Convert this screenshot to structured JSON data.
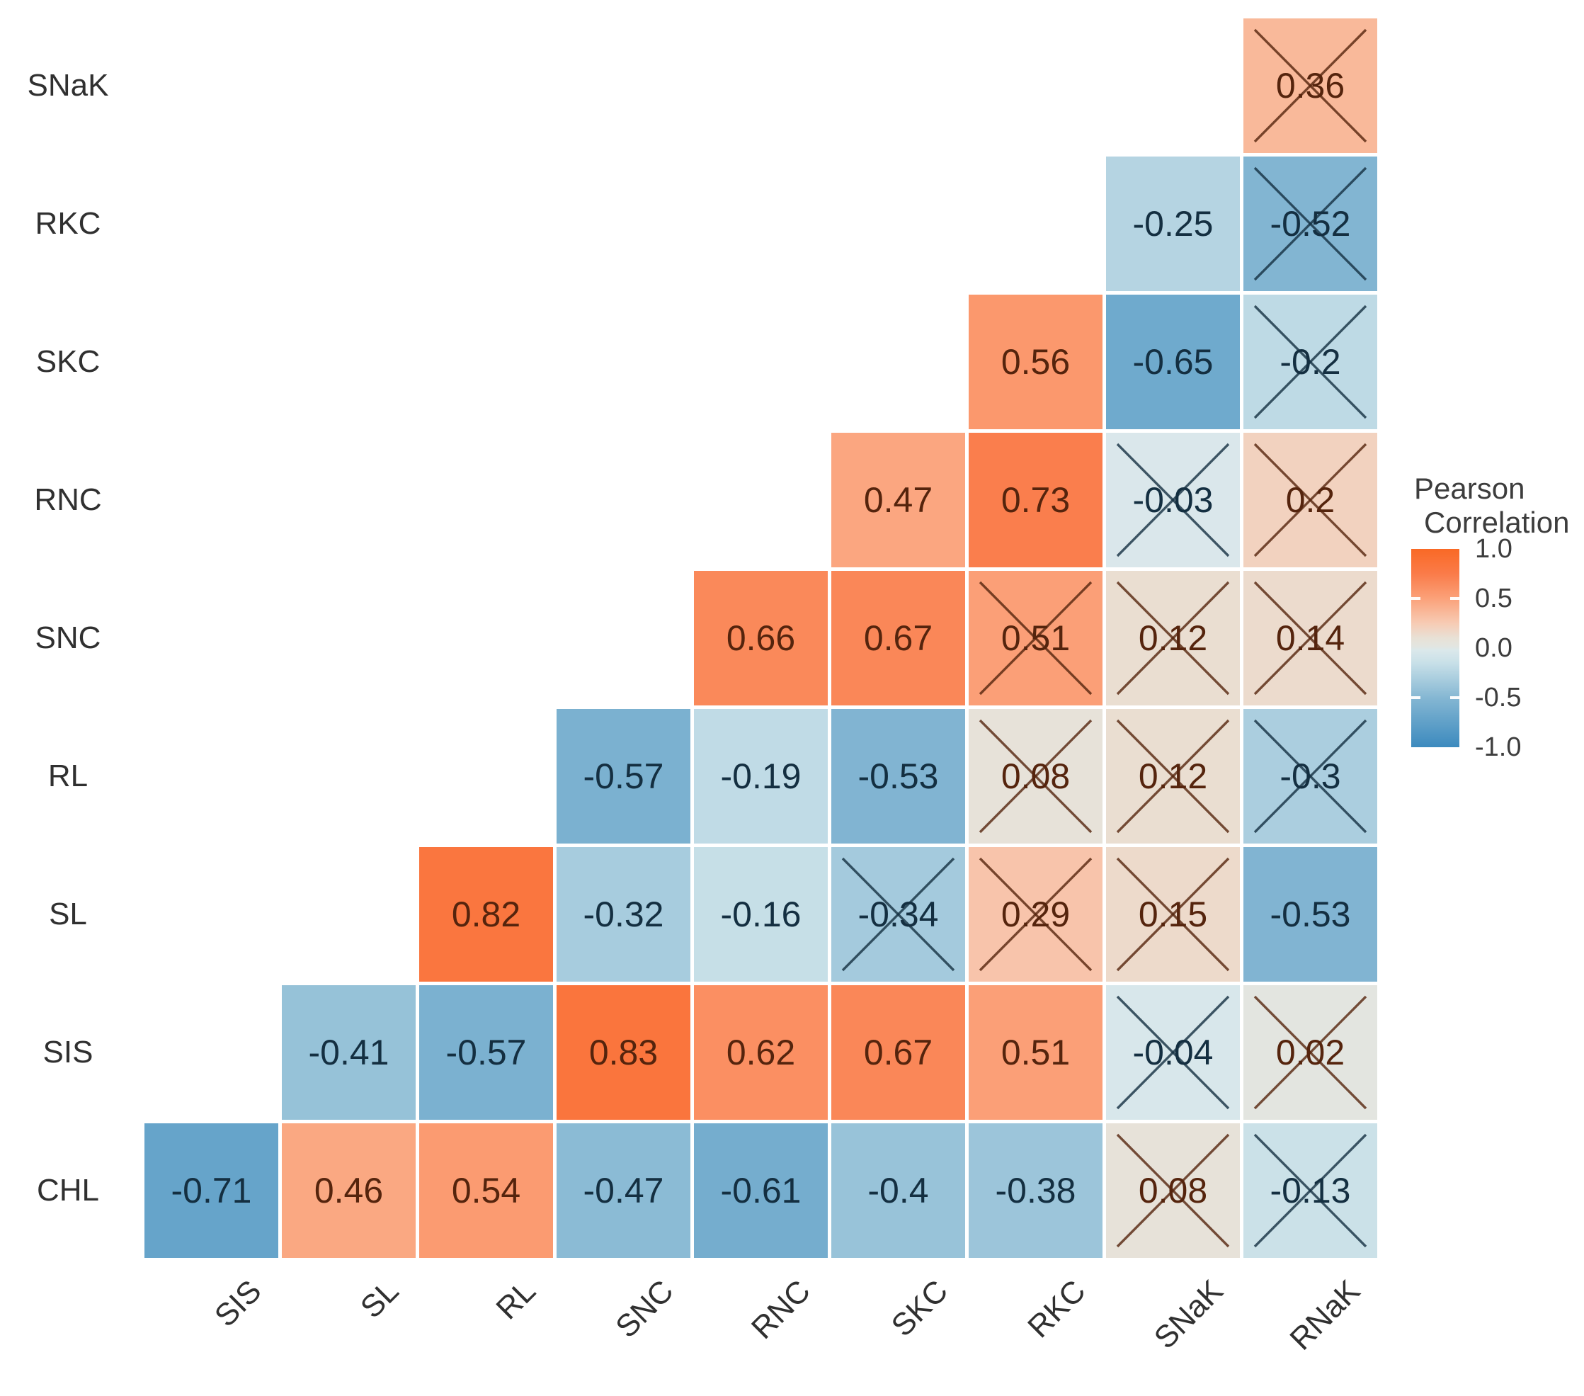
{
  "chart_data": {
    "type": "heatmap",
    "title": "",
    "x_labels": [
      "SIS",
      "SL",
      "RL",
      "SNC",
      "RNC",
      "SKC",
      "RKC",
      "SNaK",
      "RNaK"
    ],
    "y_labels": [
      "SNaK",
      "RKC",
      "SKC",
      "RNC",
      "SNC",
      "RL",
      "SL",
      "SIS",
      "CHL"
    ],
    "legend": {
      "title_lines": [
        "Pearson",
        "Correlation"
      ],
      "tick_labels": [
        "1.0",
        "0.5",
        "0.0",
        "-0.5",
        "-1.0"
      ],
      "tick_values": [
        1.0,
        0.5,
        0.0,
        -0.5,
        -1.0
      ],
      "range": [
        -1.0,
        1.0
      ]
    },
    "color_scale_stops": [
      {
        "v": -1.0,
        "c": "#3C8ABE"
      },
      {
        "v": -0.5,
        "c": "#85B7D3"
      },
      {
        "v": -0.15,
        "c": "#C8E0E8"
      },
      {
        "v": -0.02,
        "c": "#DBE8EB"
      },
      {
        "v": 0.02,
        "c": "#E3E5E0"
      },
      {
        "v": 0.1,
        "c": "#E8E1D6"
      },
      {
        "v": 0.25,
        "c": "#F7CBB4"
      },
      {
        "v": 0.5,
        "c": "#FBA179"
      },
      {
        "v": 0.75,
        "c": "#FA7B49"
      },
      {
        "v": 1.0,
        "c": "#F96925"
      }
    ],
    "crossed_meaning": "not significant",
    "cells": [
      {
        "row": "SNaK",
        "col": "RNaK",
        "value": 0.36,
        "label": "0.36",
        "crossed": true
      },
      {
        "row": "RKC",
        "col": "SNaK",
        "value": -0.25,
        "label": "-0.25",
        "crossed": false
      },
      {
        "row": "RKC",
        "col": "RNaK",
        "value": -0.52,
        "label": "-0.52",
        "crossed": true
      },
      {
        "row": "SKC",
        "col": "RKC",
        "value": 0.56,
        "label": "0.56",
        "crossed": false
      },
      {
        "row": "SKC",
        "col": "SNaK",
        "value": -0.65,
        "label": "-0.65",
        "crossed": false
      },
      {
        "row": "SKC",
        "col": "RNaK",
        "value": -0.2,
        "label": "-0.2",
        "crossed": true
      },
      {
        "row": "RNC",
        "col": "SKC",
        "value": 0.47,
        "label": "0.47",
        "crossed": false
      },
      {
        "row": "RNC",
        "col": "RKC",
        "value": 0.73,
        "label": "0.73",
        "crossed": false
      },
      {
        "row": "RNC",
        "col": "SNaK",
        "value": -0.03,
        "label": "-0.03",
        "crossed": true
      },
      {
        "row": "RNC",
        "col": "RNaK",
        "value": 0.2,
        "label": "0.2",
        "crossed": true
      },
      {
        "row": "SNC",
        "col": "RNC",
        "value": 0.66,
        "label": "0.66",
        "crossed": false
      },
      {
        "row": "SNC",
        "col": "SKC",
        "value": 0.67,
        "label": "0.67",
        "crossed": false
      },
      {
        "row": "SNC",
        "col": "RKC",
        "value": 0.51,
        "label": "0.51",
        "crossed": true
      },
      {
        "row": "SNC",
        "col": "SNaK",
        "value": 0.12,
        "label": "0.12",
        "crossed": true
      },
      {
        "row": "SNC",
        "col": "RNaK",
        "value": 0.14,
        "label": "0.14",
        "crossed": true
      },
      {
        "row": "RL",
        "col": "SNC",
        "value": -0.57,
        "label": "-0.57",
        "crossed": false
      },
      {
        "row": "RL",
        "col": "RNC",
        "value": -0.19,
        "label": "-0.19",
        "crossed": false
      },
      {
        "row": "RL",
        "col": "SKC",
        "value": -0.53,
        "label": "-0.53",
        "crossed": false
      },
      {
        "row": "RL",
        "col": "RKC",
        "value": 0.08,
        "label": "0.08",
        "crossed": true
      },
      {
        "row": "RL",
        "col": "SNaK",
        "value": 0.12,
        "label": "0.12",
        "crossed": true
      },
      {
        "row": "RL",
        "col": "RNaK",
        "value": -0.3,
        "label": "-0.3",
        "crossed": true
      },
      {
        "row": "SL",
        "col": "RL",
        "value": 0.82,
        "label": "0.82",
        "crossed": false
      },
      {
        "row": "SL",
        "col": "SNC",
        "value": -0.32,
        "label": "-0.32",
        "crossed": false
      },
      {
        "row": "SL",
        "col": "RNC",
        "value": -0.16,
        "label": "-0.16",
        "crossed": false
      },
      {
        "row": "SL",
        "col": "SKC",
        "value": -0.34,
        "label": "-0.34",
        "crossed": true
      },
      {
        "row": "SL",
        "col": "RKC",
        "value": 0.29,
        "label": "0.29",
        "crossed": true
      },
      {
        "row": "SL",
        "col": "SNaK",
        "value": 0.15,
        "label": "0.15",
        "crossed": true
      },
      {
        "row": "SL",
        "col": "RNaK",
        "value": -0.53,
        "label": "-0.53",
        "crossed": false
      },
      {
        "row": "SIS",
        "col": "SL",
        "value": -0.41,
        "label": "-0.41",
        "crossed": false
      },
      {
        "row": "SIS",
        "col": "RL",
        "value": -0.57,
        "label": "-0.57",
        "crossed": false
      },
      {
        "row": "SIS",
        "col": "SNC",
        "value": 0.83,
        "label": "0.83",
        "crossed": false
      },
      {
        "row": "SIS",
        "col": "RNC",
        "value": 0.62,
        "label": "0.62",
        "crossed": false
      },
      {
        "row": "SIS",
        "col": "SKC",
        "value": 0.67,
        "label": "0.67",
        "crossed": false
      },
      {
        "row": "SIS",
        "col": "RKC",
        "value": 0.51,
        "label": "0.51",
        "crossed": false
      },
      {
        "row": "SIS",
        "col": "SNaK",
        "value": -0.04,
        "label": "-0.04",
        "crossed": true
      },
      {
        "row": "SIS",
        "col": "RNaK",
        "value": 0.02,
        "label": "0.02",
        "crossed": true
      },
      {
        "row": "CHL",
        "col": "SIS",
        "value": -0.71,
        "label": "-0.71",
        "crossed": false
      },
      {
        "row": "CHL",
        "col": "SL",
        "value": 0.46,
        "label": "0.46",
        "crossed": false
      },
      {
        "row": "CHL",
        "col": "RL",
        "value": 0.54,
        "label": "0.54",
        "crossed": false
      },
      {
        "row": "CHL",
        "col": "SNC",
        "value": -0.47,
        "label": "-0.47",
        "crossed": false
      },
      {
        "row": "CHL",
        "col": "RNC",
        "value": -0.61,
        "label": "-0.61",
        "crossed": false
      },
      {
        "row": "CHL",
        "col": "SKC",
        "value": -0.4,
        "label": "-0.4",
        "crossed": false
      },
      {
        "row": "CHL",
        "col": "RKC",
        "value": -0.38,
        "label": "-0.38",
        "crossed": false
      },
      {
        "row": "CHL",
        "col": "SNaK",
        "value": 0.08,
        "label": "0.08",
        "crossed": true
      },
      {
        "row": "CHL",
        "col": "RNaK",
        "value": -0.13,
        "label": "-0.13",
        "crossed": true
      }
    ]
  }
}
